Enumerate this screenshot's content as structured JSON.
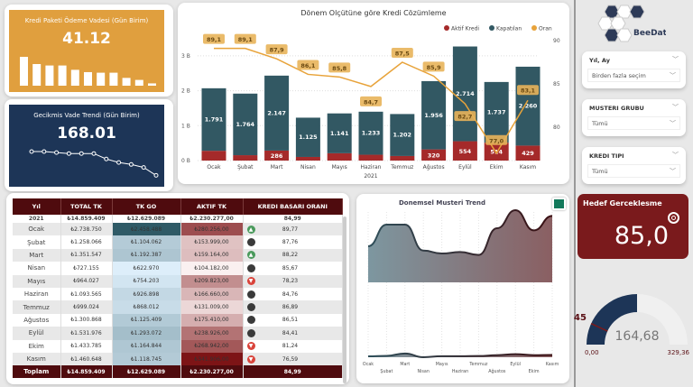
{
  "kpi_vade": {
    "title": "Kredi Paketi Ödeme Vadesi (Gün Birim)",
    "value": "41.12",
    "bars": [
      100,
      75,
      70,
      70,
      55,
      47,
      45,
      45,
      27,
      20,
      8
    ],
    "color": "#e09f3e"
  },
  "kpi_gecikme": {
    "title": "Gecikmis Vade Trendi (Gün Birim)",
    "value": "168.01",
    "points": [
      100,
      100,
      98,
      96,
      96,
      96,
      85,
      78,
      74,
      68,
      52
    ],
    "color": "#1d3557"
  },
  "chart_data": [
    {
      "type": "bar",
      "title": "Dönem Olçütüne göre Kredi Cözümleme",
      "categories": [
        "Ocak",
        "Şubat",
        "Mart",
        "Nisan",
        "Mayıs",
        "Haziran",
        "Temmuz",
        "Ağustos",
        "Eylül",
        "Ekim",
        "Kasım"
      ],
      "xlabel": "2021",
      "ylim": [
        0,
        3.3
      ],
      "y_ticks": [
        "0 B",
        "1 B",
        "2 B",
        "3 B"
      ],
      "y2_ticks": [
        "80",
        "85",
        "90"
      ],
      "y2lim": [
        75,
        91
      ],
      "legend": [
        "Aktif Kredi",
        "Kapatılan",
        "Oran"
      ],
      "legend_position": "top-right",
      "series": [
        {
          "name": "Aktif Kredi",
          "color": "#a52a2a",
          "values": [
            280,
            154,
            286,
            104,
            210,
            167,
            131,
            320,
            554,
            514,
            429
          ],
          "labels": [
            "",
            "",
            "286",
            "",
            "",
            "",
            "",
            "320",
            "554",
            "514",
            "429"
          ]
        },
        {
          "name": "Kapatılan",
          "color": "#325863",
          "values": [
            1791,
            1764,
            2147,
            1125,
            1141,
            1233,
            1202,
            1956,
            2714,
            1737,
            2260
          ],
          "labels": [
            "1.791",
            "1.764",
            "2.147",
            "1.125",
            "1.141",
            "1.233",
            "1.202",
            "1.956",
            "2.714",
            "1.737",
            "2.260"
          ]
        },
        {
          "name": "Oran",
          "color": "#e8a33a",
          "values": [
            89.1,
            89.1,
            87.9,
            86.1,
            85.8,
            84.7,
            87.5,
            85.9,
            82.7,
            77.0,
            83.1
          ],
          "labels": [
            "89,1",
            "89,1",
            "87,9",
            "86,1",
            "85,8",
            "84,7",
            "87,5",
            "85,9",
            "82,7",
            "77,0",
            "83,1"
          ]
        }
      ]
    },
    {
      "type": "area",
      "title": "Donemsel Musteri Trend",
      "categories": [
        "Ocak",
        "Şubat",
        "Mart",
        "Nisan",
        "Mayıs",
        "Haziran",
        "Temmuz",
        "Ağustos",
        "Eylül",
        "Ekim",
        "Kasım"
      ],
      "series": [
        {
          "values": [
            50,
            80,
            80,
            44,
            40,
            42,
            38,
            75,
            100,
            72,
            92
          ]
        },
        {
          "values": [
            5,
            8,
            22,
            0,
            6,
            6,
            7,
            12,
            18,
            12,
            13
          ]
        }
      ]
    }
  ],
  "table": {
    "headers": [
      "Yıl",
      "TOTAL TK",
      "TK GO",
      "AKTIF TK",
      "KREDI BASARI ORANI"
    ],
    "group": {
      "label": "2021",
      "total": "₺14.859.409",
      "go": "₺12.629.089",
      "aktif": "₺2.230.277,00",
      "oran": "84,99"
    },
    "rows": [
      {
        "m": "Ocak",
        "total": "₺2.738.750",
        "go": "₺2.458.488",
        "go_v": 2458488,
        "aktif": "₺280.256,00",
        "aktif_v": 280256,
        "status": "up",
        "oran": "89,77"
      },
      {
        "m": "Şubat",
        "total": "₺1.258.066",
        "go": "₺1.104.062",
        "go_v": 1104062,
        "aktif": "₺153.999,00",
        "aktif_v": 153999,
        "status": "neutral",
        "oran": "87,76"
      },
      {
        "m": "Mart",
        "total": "₺1.351.547",
        "go": "₺1.192.387",
        "go_v": 1192387,
        "aktif": "₺159.164,00",
        "aktif_v": 159164,
        "status": "up",
        "oran": "88,22"
      },
      {
        "m": "Nisan",
        "total": "₺727.155",
        "go": "₺622.970",
        "go_v": 622970,
        "aktif": "₺104.182,00",
        "aktif_v": 104182,
        "status": "neutral",
        "oran": "85,67"
      },
      {
        "m": "Mayıs",
        "total": "₺964.027",
        "go": "₺754.203",
        "go_v": 754203,
        "aktif": "₺209.823,00",
        "aktif_v": 209823,
        "status": "down",
        "oran": "78,23"
      },
      {
        "m": "Haziran",
        "total": "₺1.093.565",
        "go": "₺926.898",
        "go_v": 926898,
        "aktif": "₺166.660,00",
        "aktif_v": 166660,
        "status": "neutral",
        "oran": "84,76"
      },
      {
        "m": "Temmuz",
        "total": "₺999.024",
        "go": "₺868.012",
        "go_v": 868012,
        "aktif": "₺131.009,00",
        "aktif_v": 131009,
        "status": "neutral",
        "oran": "86,89"
      },
      {
        "m": "Ağustos",
        "total": "₺1.300.868",
        "go": "₺1.125.409",
        "go_v": 1125409,
        "aktif": "₺175.410,00",
        "aktif_v": 175410,
        "status": "neutral",
        "oran": "86,51"
      },
      {
        "m": "Eylül",
        "total": "₺1.531.976",
        "go": "₺1.293.072",
        "go_v": 1293072,
        "aktif": "₺238.926,00",
        "aktif_v": 238926,
        "status": "neutral",
        "oran": "84,41"
      },
      {
        "m": "Ekim",
        "total": "₺1.433.785",
        "go": "₺1.164.844",
        "go_v": 1164844,
        "aktif": "₺268.942,00",
        "aktif_v": 268942,
        "status": "down",
        "oran": "81,24"
      },
      {
        "m": "Kasım",
        "total": "₺1.460.648",
        "go": "₺1.118.745",
        "go_v": 1118745,
        "aktif": "₺341.906,00",
        "aktif_v": 341906,
        "status": "down",
        "oran": "76,59"
      }
    ],
    "footer": {
      "label": "Toplam",
      "total": "₺14.859.409",
      "go": "₺12.629.089",
      "aktif": "₺2.230.277,00",
      "oran": "84,99"
    }
  },
  "logo": {
    "text": "BeeData"
  },
  "slicers": [
    {
      "label": "Yıl, Ay",
      "value": "Birden fazla seçim"
    },
    {
      "label": "MUSTERI GRUBU",
      "value": "Tümü"
    },
    {
      "label": "KREDI TIPI",
      "value": "Tümü"
    }
  ],
  "hedef": {
    "title": "Hedef Gerceklesme",
    "value": "85,0",
    "color": "#7a1a1c"
  },
  "gauge": {
    "value": 164.68,
    "value_label": "164,68",
    "min_label": "0,00",
    "max_label": "329,36",
    "min": 0,
    "max": 329.36,
    "target": 45,
    "target_label": "45"
  }
}
